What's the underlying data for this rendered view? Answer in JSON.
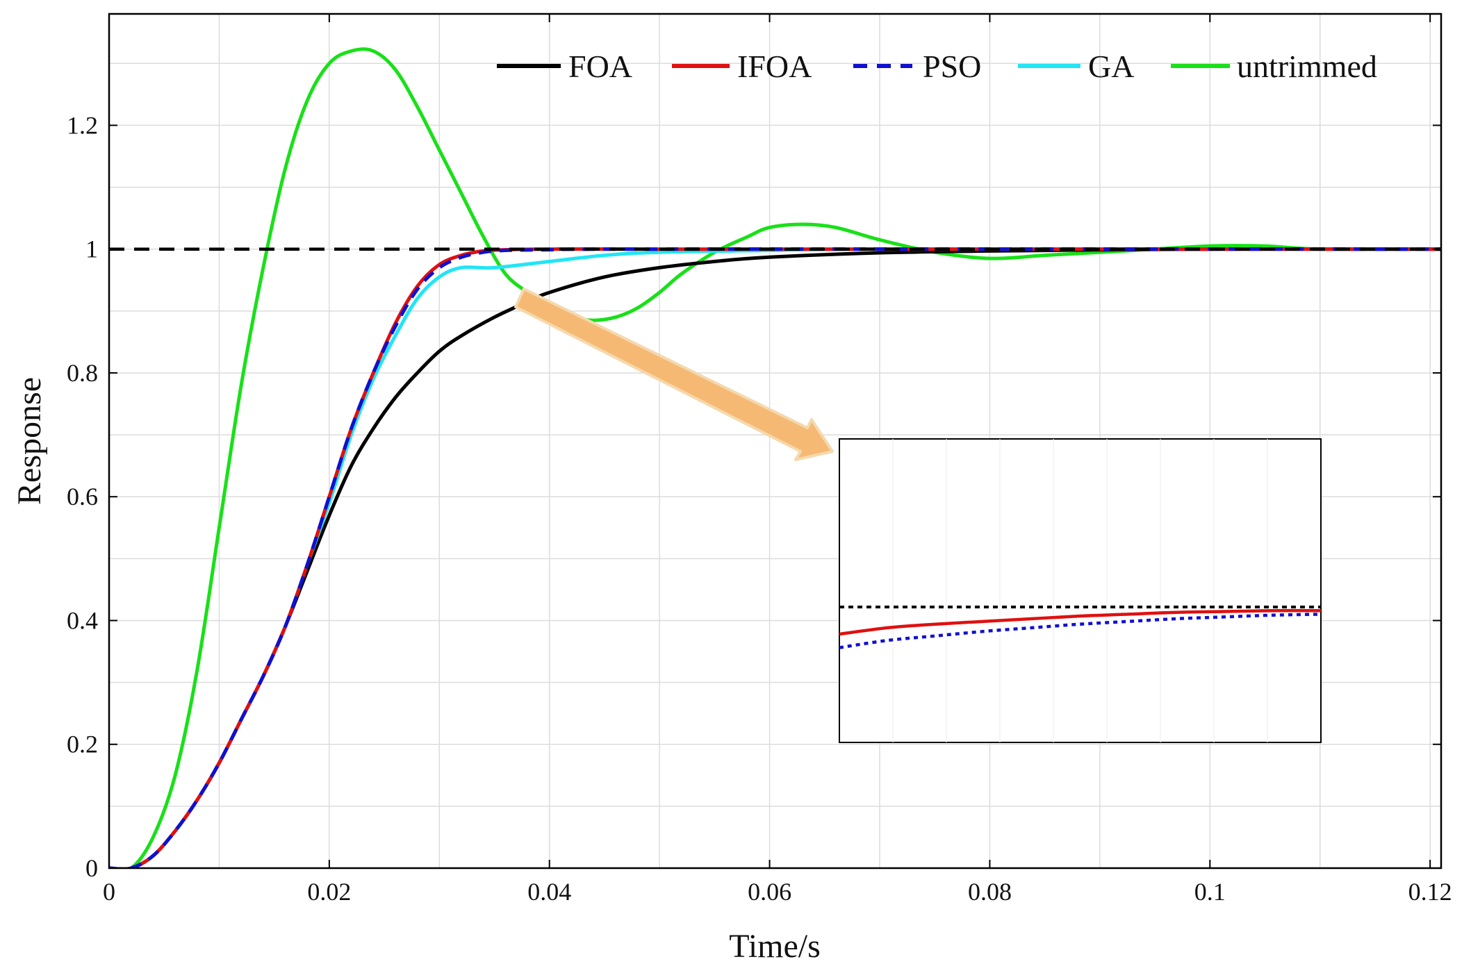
{
  "chart_data": {
    "type": "line",
    "title": "",
    "xlabel": "Time/s",
    "ylabel": "Response",
    "xlim": [
      0,
      0.121
    ],
    "ylim": [
      0,
      1.38
    ],
    "xticks": [
      0,
      0.02,
      0.04,
      0.06,
      0.08,
      0.1,
      0.12
    ],
    "xtick_labels": [
      "0",
      "0.02",
      "0.04",
      "0.06",
      "0.08",
      "0.1",
      "0.12"
    ],
    "yticks": [
      0,
      0.2,
      0.4,
      0.6,
      0.8,
      1,
      1.2
    ],
    "ytick_labels": [
      "0",
      "0.2",
      "0.4",
      "0.6",
      "0.8",
      "1",
      "1.2"
    ],
    "grid": true,
    "legend_position": "top-right",
    "reference": {
      "name": "setpoint",
      "value": 1,
      "style": "dashed",
      "color": "#000000"
    },
    "series": [
      {
        "name": "FOA",
        "color": "#000000",
        "style": "solid",
        "x": [
          0,
          0.002,
          0.004,
          0.006,
          0.008,
          0.01,
          0.012,
          0.014,
          0.016,
          0.018,
          0.02,
          0.022,
          0.024,
          0.026,
          0.028,
          0.03,
          0.032,
          0.035,
          0.038,
          0.04,
          0.045,
          0.05,
          0.055,
          0.06,
          0.07,
          0.08,
          0.1,
          0.121
        ],
        "y": [
          0,
          0,
          0.02,
          0.06,
          0.11,
          0.17,
          0.24,
          0.31,
          0.39,
          0.48,
          0.57,
          0.65,
          0.71,
          0.76,
          0.8,
          0.835,
          0.86,
          0.89,
          0.915,
          0.93,
          0.955,
          0.97,
          0.98,
          0.987,
          0.994,
          0.997,
          1,
          1
        ]
      },
      {
        "name": "IFOA",
        "color": "#e01010",
        "style": "solid",
        "x": [
          0,
          0.002,
          0.004,
          0.006,
          0.008,
          0.01,
          0.012,
          0.014,
          0.016,
          0.018,
          0.02,
          0.022,
          0.024,
          0.026,
          0.028,
          0.03,
          0.032,
          0.034,
          0.036,
          0.04,
          0.05,
          0.121
        ],
        "y": [
          0,
          0,
          0.02,
          0.06,
          0.11,
          0.17,
          0.24,
          0.31,
          0.39,
          0.49,
          0.6,
          0.71,
          0.8,
          0.88,
          0.94,
          0.975,
          0.99,
          0.997,
          0.999,
          1,
          1,
          1
        ]
      },
      {
        "name": "PSO",
        "color": "#1010d0",
        "style": "dashed",
        "x": [
          0,
          0.002,
          0.004,
          0.006,
          0.008,
          0.01,
          0.012,
          0.014,
          0.016,
          0.018,
          0.02,
          0.022,
          0.024,
          0.026,
          0.028,
          0.03,
          0.032,
          0.034,
          0.036,
          0.04,
          0.05,
          0.121
        ],
        "y": [
          0,
          0,
          0.02,
          0.06,
          0.11,
          0.17,
          0.24,
          0.31,
          0.39,
          0.49,
          0.6,
          0.71,
          0.8,
          0.875,
          0.935,
          0.97,
          0.987,
          0.995,
          0.998,
          0.999,
          1,
          1
        ]
      },
      {
        "name": "GA",
        "color": "#22e5f5",
        "style": "solid",
        "x": [
          0,
          0.002,
          0.004,
          0.006,
          0.008,
          0.01,
          0.012,
          0.014,
          0.016,
          0.018,
          0.02,
          0.022,
          0.024,
          0.026,
          0.028,
          0.03,
          0.032,
          0.035,
          0.04,
          0.045,
          0.05,
          0.06,
          0.07,
          0.121
        ],
        "y": [
          0,
          0,
          0.02,
          0.06,
          0.11,
          0.17,
          0.24,
          0.31,
          0.39,
          0.49,
          0.59,
          0.7,
          0.79,
          0.86,
          0.92,
          0.955,
          0.97,
          0.97,
          0.98,
          0.99,
          0.995,
          0.998,
          1,
          1
        ]
      },
      {
        "name": "untrimmed",
        "color": "#19e019",
        "style": "solid",
        "x": [
          0,
          0.002,
          0.004,
          0.006,
          0.008,
          0.01,
          0.012,
          0.014,
          0.016,
          0.018,
          0.02,
          0.022,
          0.024,
          0.026,
          0.028,
          0.03,
          0.032,
          0.034,
          0.036,
          0.038,
          0.04,
          0.042,
          0.044,
          0.046,
          0.048,
          0.05,
          0.052,
          0.055,
          0.058,
          0.06,
          0.063,
          0.066,
          0.07,
          0.075,
          0.08,
          0.085,
          0.09,
          0.095,
          0.1,
          0.105,
          0.11,
          0.121
        ],
        "y": [
          0,
          0,
          0.05,
          0.15,
          0.32,
          0.55,
          0.78,
          0.97,
          1.13,
          1.24,
          1.3,
          1.32,
          1.32,
          1.29,
          1.23,
          1.16,
          1.09,
          1.02,
          0.96,
          0.93,
          0.905,
          0.89,
          0.885,
          0.89,
          0.905,
          0.93,
          0.96,
          0.995,
          1.02,
          1.035,
          1.04,
          1.035,
          1.015,
          0.995,
          0.985,
          0.99,
          0.995,
          1.0,
          1.005,
          1.005,
          1.0,
          1.0
        ]
      }
    ],
    "inset": {
      "description": "zoomed view",
      "reference_value": 1,
      "lines": [
        {
          "name": "IFOA",
          "color": "#e01010",
          "style": "solid",
          "x": [
            0,
            0.1,
            0.2,
            0.3,
            0.4,
            0.5,
            0.6,
            0.7,
            0.8,
            0.9,
            1.0
          ],
          "y": [
            0.3,
            0.23,
            0.19,
            0.16,
            0.13,
            0.1,
            0.08,
            0.06,
            0.05,
            0.04,
            0.04
          ]
        },
        {
          "name": "PSO",
          "color": "#1010d0",
          "style": "dotted",
          "x": [
            0,
            0.1,
            0.2,
            0.3,
            0.4,
            0.5,
            0.6,
            0.7,
            0.8,
            0.9,
            1.0
          ],
          "y": [
            0.45,
            0.37,
            0.32,
            0.27,
            0.23,
            0.19,
            0.16,
            0.13,
            0.11,
            0.09,
            0.08
          ]
        }
      ]
    }
  }
}
